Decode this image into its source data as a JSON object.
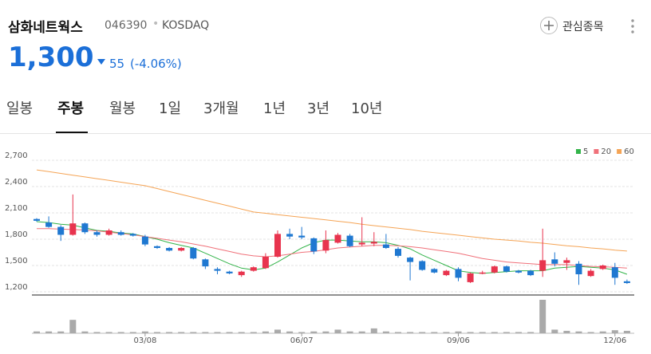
{
  "header": {
    "name": "삼화네트웍스",
    "code": "046390",
    "market": "KOSDAQ",
    "watch_button": "관심종목"
  },
  "price": {
    "current": "1,300",
    "change": "55",
    "change_pct": "(-4.06%)"
  },
  "tabs": [
    "일봉",
    "주봉",
    "월봉",
    "1일",
    "3개월",
    "1년",
    "3년",
    "10년"
  ],
  "selected_tab": 1,
  "chart_data": {
    "type": "candlestick",
    "categories": [
      null,
      null,
      null,
      null,
      null,
      null,
      null,
      null,
      null,
      "03/08",
      null,
      null,
      null,
      null,
      null,
      null,
      null,
      null,
      null,
      null,
      null,
      null,
      "06/07",
      null,
      null,
      null,
      null,
      null,
      null,
      null,
      null,
      null,
      null,
      null,
      null,
      "09/06",
      null,
      null,
      null,
      null,
      null,
      null,
      null,
      null,
      null,
      null,
      null,
      null,
      "12/06",
      null
    ],
    "open": [
      2030,
      1990,
      1940,
      1850,
      1980,
      1880,
      1850,
      1880,
      1860,
      1830,
      1720,
      1700,
      1670,
      1700,
      1570,
      1460,
      1430,
      1390,
      1440,
      1470,
      1600,
      1860,
      1840,
      1810,
      1670,
      1760,
      1840,
      1740,
      1750,
      1740,
      1690,
      1590,
      1550,
      1460,
      1390,
      1460,
      1310,
      1410,
      1420,
      1490,
      1440,
      1440,
      1440,
      1570,
      1530,
      1520,
      1380,
      1460,
      1480,
      1320
    ],
    "high": [
      2040,
      2060,
      1960,
      2310,
      1990,
      1900,
      1920,
      1900,
      1870,
      1850,
      1730,
      1710,
      1710,
      1710,
      1580,
      1480,
      1440,
      1440,
      1490,
      1640,
      1900,
      1920,
      1940,
      1820,
      1900,
      1870,
      1860,
      2050,
      1880,
      1860,
      1710,
      1600,
      1560,
      1470,
      1450,
      1480,
      1420,
      1440,
      1500,
      1500,
      1450,
      1450,
      1920,
      1650,
      1590,
      1550,
      1460,
      1510,
      1530,
      1340
    ],
    "low": [
      2000,
      1930,
      1780,
      1840,
      1860,
      1830,
      1840,
      1840,
      1830,
      1720,
      1690,
      1660,
      1660,
      1570,
      1460,
      1400,
      1400,
      1370,
      1430,
      1460,
      1590,
      1800,
      1800,
      1630,
      1640,
      1750,
      1710,
      1720,
      1720,
      1690,
      1590,
      1330,
      1440,
      1410,
      1380,
      1320,
      1300,
      1400,
      1410,
      1420,
      1410,
      1380,
      1370,
      1490,
      1450,
      1280,
      1370,
      1450,
      1280,
      1290
    ],
    "close": [
      2010,
      1940,
      1850,
      1980,
      1880,
      1850,
      1900,
      1850,
      1840,
      1740,
      1700,
      1670,
      1700,
      1580,
      1490,
      1440,
      1410,
      1430,
      1480,
      1600,
      1860,
      1830,
      1820,
      1660,
      1790,
      1850,
      1720,
      1760,
      1770,
      1700,
      1610,
      1540,
      1450,
      1420,
      1440,
      1360,
      1410,
      1420,
      1490,
      1430,
      1420,
      1390,
      1560,
      1520,
      1560,
      1400,
      1440,
      1500,
      1360,
      1300
    ],
    "up_color": "#e8344e",
    "down_color": "#1f78d1",
    "moving_averages": [
      {
        "name": "5",
        "color": "#33b44a",
        "values": [
          2000,
          1990,
          1970,
          1960,
          1930,
          1900,
          1890,
          1870,
          1860,
          1830,
          1800,
          1760,
          1730,
          1700,
          1640,
          1580,
          1520,
          1470,
          1450,
          1470,
          1540,
          1620,
          1700,
          1760,
          1790,
          1790,
          1780,
          1770,
          1770,
          1760,
          1730,
          1690,
          1620,
          1560,
          1500,
          1440,
          1420,
          1410,
          1420,
          1430,
          1440,
          1440,
          1440,
          1470,
          1480,
          1490,
          1480,
          1470,
          1450,
          1400
        ]
      },
      {
        "name": "20",
        "color": "#f0717a",
        "values": [
          1920,
          1920,
          1915,
          1910,
          1905,
          1895,
          1880,
          1865,
          1850,
          1830,
          1810,
          1790,
          1770,
          1745,
          1720,
          1690,
          1660,
          1630,
          1610,
          1600,
          1610,
          1630,
          1650,
          1660,
          1680,
          1700,
          1710,
          1720,
          1730,
          1730,
          1725,
          1715,
          1700,
          1680,
          1660,
          1640,
          1610,
          1580,
          1560,
          1540,
          1530,
          1520,
          1510,
          1510,
          1510,
          1500,
          1490,
          1485,
          1480,
          1470
        ]
      },
      {
        "name": "60",
        "color": "#f5a455",
        "values": [
          2590,
          2570,
          2550,
          2530,
          2510,
          2490,
          2470,
          2450,
          2430,
          2410,
          2377,
          2343,
          2310,
          2277,
          2243,
          2210,
          2177,
          2143,
          2110,
          2095,
          2080,
          2065,
          2050,
          2035,
          2020,
          2005,
          1990,
          1970,
          1955,
          1940,
          1925,
          1910,
          1890,
          1875,
          1860,
          1845,
          1830,
          1815,
          1800,
          1790,
          1780,
          1765,
          1755,
          1740,
          1725,
          1715,
          1700,
          1690,
          1675,
          1665
        ]
      }
    ],
    "volume": [
      3,
      3,
      3,
      22,
      3,
      2,
      2,
      2,
      2,
      3,
      2,
      2,
      2,
      2,
      2,
      2,
      2,
      2,
      2,
      3,
      6,
      3,
      2,
      3,
      3,
      6,
      3,
      3,
      8,
      3,
      2,
      2,
      2,
      2,
      2,
      3,
      2,
      2,
      2,
      2,
      2,
      2,
      55,
      6,
      4,
      3,
      2,
      3,
      5,
      4
    ],
    "volume_color": "#aaaaaa",
    "ylim": [
      1200,
      2800
    ],
    "yticks": [
      {
        "value": 1200,
        "label": "1,200"
      },
      {
        "value": 1500,
        "label": "1,500"
      },
      {
        "value": 1800,
        "label": "1,800"
      },
      {
        "value": 2100,
        "label": "2,100"
      },
      {
        "value": 2400,
        "label": "2,400"
      },
      {
        "value": 2700,
        "label": "2,700"
      }
    ],
    "grid": true,
    "legend": "top-right"
  }
}
